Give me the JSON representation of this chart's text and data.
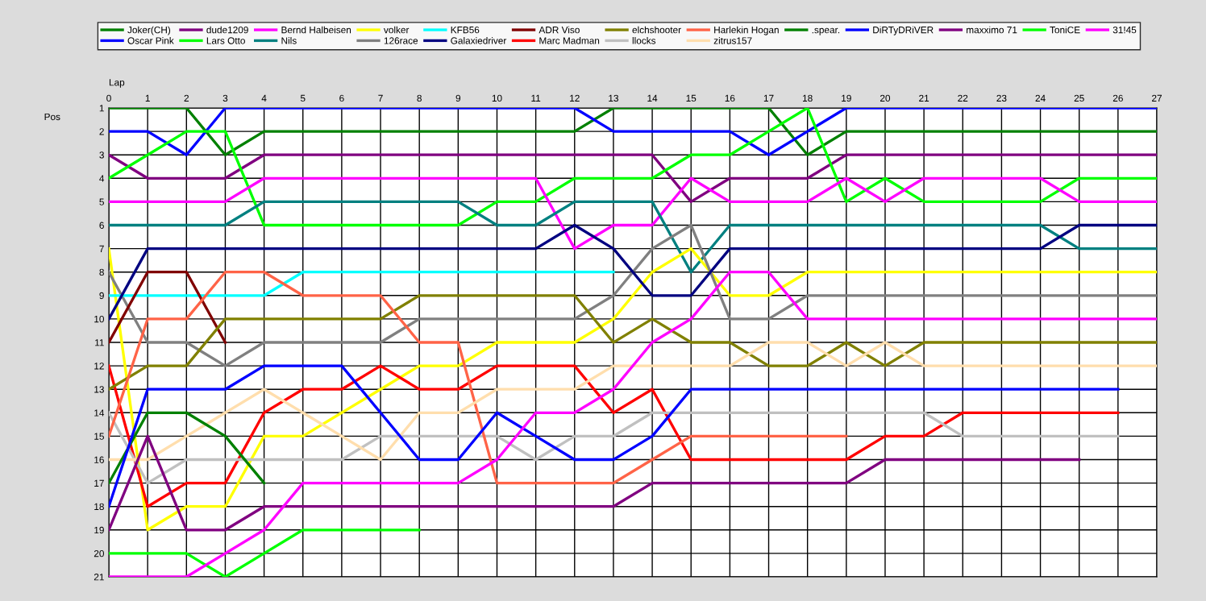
{
  "chart_data": {
    "type": "line",
    "xlabel": "Lap",
    "ylabel": "Pos",
    "x": [
      0,
      1,
      2,
      3,
      4,
      5,
      6,
      7,
      8,
      9,
      10,
      11,
      12,
      13,
      14,
      15,
      16,
      17,
      18,
      19,
      20,
      21,
      22,
      23,
      24,
      25,
      26,
      27
    ],
    "xlim": [
      0,
      27
    ],
    "xticks": [
      0,
      1,
      2,
      3,
      4,
      5,
      6,
      7,
      8,
      9,
      10,
      11,
      12,
      13,
      14,
      15,
      16,
      17,
      18,
      19,
      20,
      21,
      22,
      23,
      24,
      25,
      26,
      27
    ],
    "ylim": [
      21,
      1
    ],
    "yticks": [
      1,
      2,
      3,
      4,
      5,
      6,
      7,
      8,
      9,
      10,
      11,
      12,
      13,
      14,
      15,
      16,
      17,
      18,
      19,
      20,
      21
    ],
    "grid": true,
    "legend": "top",
    "marker": "none",
    "line_style": "solid",
    "series": [
      {
        "name": "Joker(CH)",
        "color": "#008000",
        "values": [
          1,
          1,
          1,
          3,
          2,
          2,
          2,
          2,
          2,
          2,
          2,
          2,
          2,
          1,
          1,
          1,
          1,
          1,
          3,
          2,
          2,
          2,
          2,
          2,
          2,
          2,
          2,
          2
        ]
      },
      {
        "name": "Oscar Pink",
        "color": "#0000ff",
        "values": [
          2,
          2,
          3,
          1,
          1,
          1,
          1,
          1,
          1,
          1,
          1,
          1,
          1,
          2,
          2,
          2,
          2,
          3,
          2,
          1,
          1,
          1,
          1,
          1,
          1,
          1,
          1,
          1
        ]
      },
      {
        "name": "dude1209",
        "color": "#800080",
        "values": [
          3,
          4,
          4,
          4,
          3,
          3,
          3,
          3,
          3,
          3,
          3,
          3,
          3,
          3,
          3,
          5,
          4,
          4,
          4,
          3,
          3,
          3,
          3,
          3,
          3,
          3,
          3,
          3
        ]
      },
      {
        "name": "Lars Otto",
        "color": "#00ff00",
        "values": [
          4,
          3,
          2,
          2,
          6,
          6,
          6,
          6,
          6,
          6,
          5,
          5,
          4,
          4,
          4,
          3,
          3,
          2,
          1,
          5,
          4,
          5,
          5,
          5,
          5,
          4,
          4,
          4
        ]
      },
      {
        "name": "Bernd Halbeisen",
        "color": "#ff00ff",
        "values": [
          5,
          5,
          5,
          5,
          4,
          4,
          4,
          4,
          4,
          4,
          4,
          4,
          7,
          6,
          6,
          4,
          5,
          5,
          5,
          4,
          5,
          4,
          4,
          4,
          4,
          5,
          5,
          5
        ]
      },
      {
        "name": "Nils",
        "color": "#008080",
        "values": [
          6,
          6,
          6,
          6,
          5,
          5,
          5,
          5,
          5,
          5,
          6,
          6,
          5,
          5,
          5,
          8,
          6,
          6,
          6,
          6,
          6,
          6,
          6,
          6,
          6,
          7,
          7,
          7
        ]
      },
      {
        "name": "volker",
        "color": "#ffff00",
        "values": [
          7,
          19,
          18,
          18,
          15,
          15,
          14,
          13,
          12,
          12,
          11,
          11,
          11,
          10,
          8,
          7,
          9,
          9,
          8,
          8,
          8,
          8,
          8,
          8,
          8,
          8,
          8,
          8
        ]
      },
      {
        "name": "126race",
        "color": "#808080",
        "values": [
          8,
          11,
          11,
          12,
          11,
          11,
          11,
          11,
          10,
          10,
          10,
          10,
          10,
          9,
          7,
          6,
          10,
          10,
          9,
          9,
          9,
          9,
          9,
          9,
          9,
          9,
          9,
          9
        ]
      },
      {
        "name": "KFB56",
        "color": "#00ffff",
        "values": [
          9,
          9,
          9,
          9,
          9,
          8,
          8,
          8,
          8,
          8,
          8,
          8,
          8,
          8,
          null,
          null,
          null,
          null,
          null,
          null,
          null,
          null,
          null,
          null,
          null,
          null,
          null,
          null
        ]
      },
      {
        "name": "Galaxiedriver",
        "color": "#000080",
        "values": [
          10,
          7,
          7,
          7,
          7,
          7,
          7,
          7,
          7,
          7,
          7,
          7,
          6,
          7,
          9,
          9,
          7,
          7,
          7,
          7,
          7,
          7,
          7,
          7,
          7,
          6,
          6,
          6
        ]
      },
      {
        "name": "ADR Viso",
        "color": "#800000",
        "values": [
          11,
          8,
          8,
          11,
          null,
          null,
          null,
          null,
          null,
          null,
          null,
          null,
          null,
          null,
          null,
          null,
          null,
          null,
          null,
          null,
          null,
          null,
          null,
          null,
          null,
          null,
          null,
          null
        ]
      },
      {
        "name": "Marc Madman",
        "color": "#ff0000",
        "values": [
          12,
          18,
          17,
          17,
          14,
          13,
          13,
          12,
          13,
          13,
          12,
          12,
          12,
          14,
          13,
          16,
          16,
          16,
          16,
          16,
          15,
          15,
          14,
          14,
          14,
          14,
          14,
          null
        ]
      },
      {
        "name": "elchshooter",
        "color": "#808000",
        "values": [
          13,
          12,
          12,
          10,
          10,
          10,
          10,
          10,
          9,
          9,
          9,
          9,
          9,
          11,
          10,
          11,
          11,
          12,
          12,
          11,
          12,
          11,
          11,
          11,
          11,
          11,
          11,
          11
        ]
      },
      {
        "name": "llocks",
        "color": "#c0c0c0",
        "values": [
          14,
          17,
          16,
          16,
          16,
          16,
          16,
          15,
          15,
          15,
          15,
          16,
          15,
          15,
          14,
          14,
          14,
          14,
          14,
          14,
          14,
          14,
          15,
          15,
          15,
          15,
          15,
          null
        ]
      },
      {
        "name": "Harlekin Hogan",
        "color": "#ff6347",
        "values": [
          15,
          10,
          10,
          8,
          8,
          9,
          9,
          9,
          11,
          11,
          17,
          17,
          17,
          17,
          16,
          15,
          15,
          15,
          15,
          15,
          null,
          null,
          null,
          null,
          null,
          null,
          null,
          null
        ]
      },
      {
        "name": "zitrus157",
        "color": "#ffdead",
        "values": [
          16,
          16,
          15,
          14,
          13,
          14,
          15,
          16,
          14,
          14,
          13,
          13,
          13,
          12,
          12,
          12,
          12,
          11,
          11,
          12,
          11,
          12,
          12,
          12,
          12,
          12,
          12,
          12
        ]
      },
      {
        "name": ".spear.",
        "color": "#008000",
        "values": [
          17,
          14,
          14,
          15,
          17,
          null,
          null,
          null,
          null,
          null,
          null,
          null,
          null,
          null,
          null,
          null,
          null,
          null,
          null,
          null,
          null,
          null,
          null,
          null,
          null,
          null,
          null,
          null
        ]
      },
      {
        "name": "DiRTyDRiVER",
        "color": "#0000ff",
        "values": [
          18,
          13,
          13,
          13,
          12,
          12,
          12,
          14,
          16,
          16,
          14,
          15,
          16,
          16,
          15,
          13,
          13,
          13,
          13,
          13,
          13,
          13,
          13,
          13,
          13,
          13,
          13,
          null
        ]
      },
      {
        "name": "maxximo 71",
        "color": "#800080",
        "values": [
          19,
          15,
          19,
          19,
          18,
          18,
          18,
          18,
          18,
          18,
          18,
          18,
          18,
          18,
          17,
          17,
          17,
          17,
          17,
          17,
          16,
          16,
          16,
          16,
          16,
          16,
          null,
          null
        ]
      },
      {
        "name": "ToniCE",
        "color": "#00ff00",
        "values": [
          20,
          20,
          20,
          21,
          20,
          19,
          19,
          19,
          19,
          null,
          null,
          null,
          null,
          null,
          null,
          null,
          null,
          null,
          null,
          null,
          null,
          null,
          null,
          null,
          null,
          null,
          null,
          null
        ]
      },
      {
        "name": "31!45",
        "color": "#ff00ff",
        "values": [
          21,
          21,
          21,
          20,
          19,
          17,
          17,
          17,
          17,
          17,
          16,
          14,
          14,
          13,
          11,
          10,
          8,
          8,
          10,
          10,
          10,
          10,
          10,
          10,
          10,
          10,
          10,
          10
        ]
      }
    ]
  }
}
